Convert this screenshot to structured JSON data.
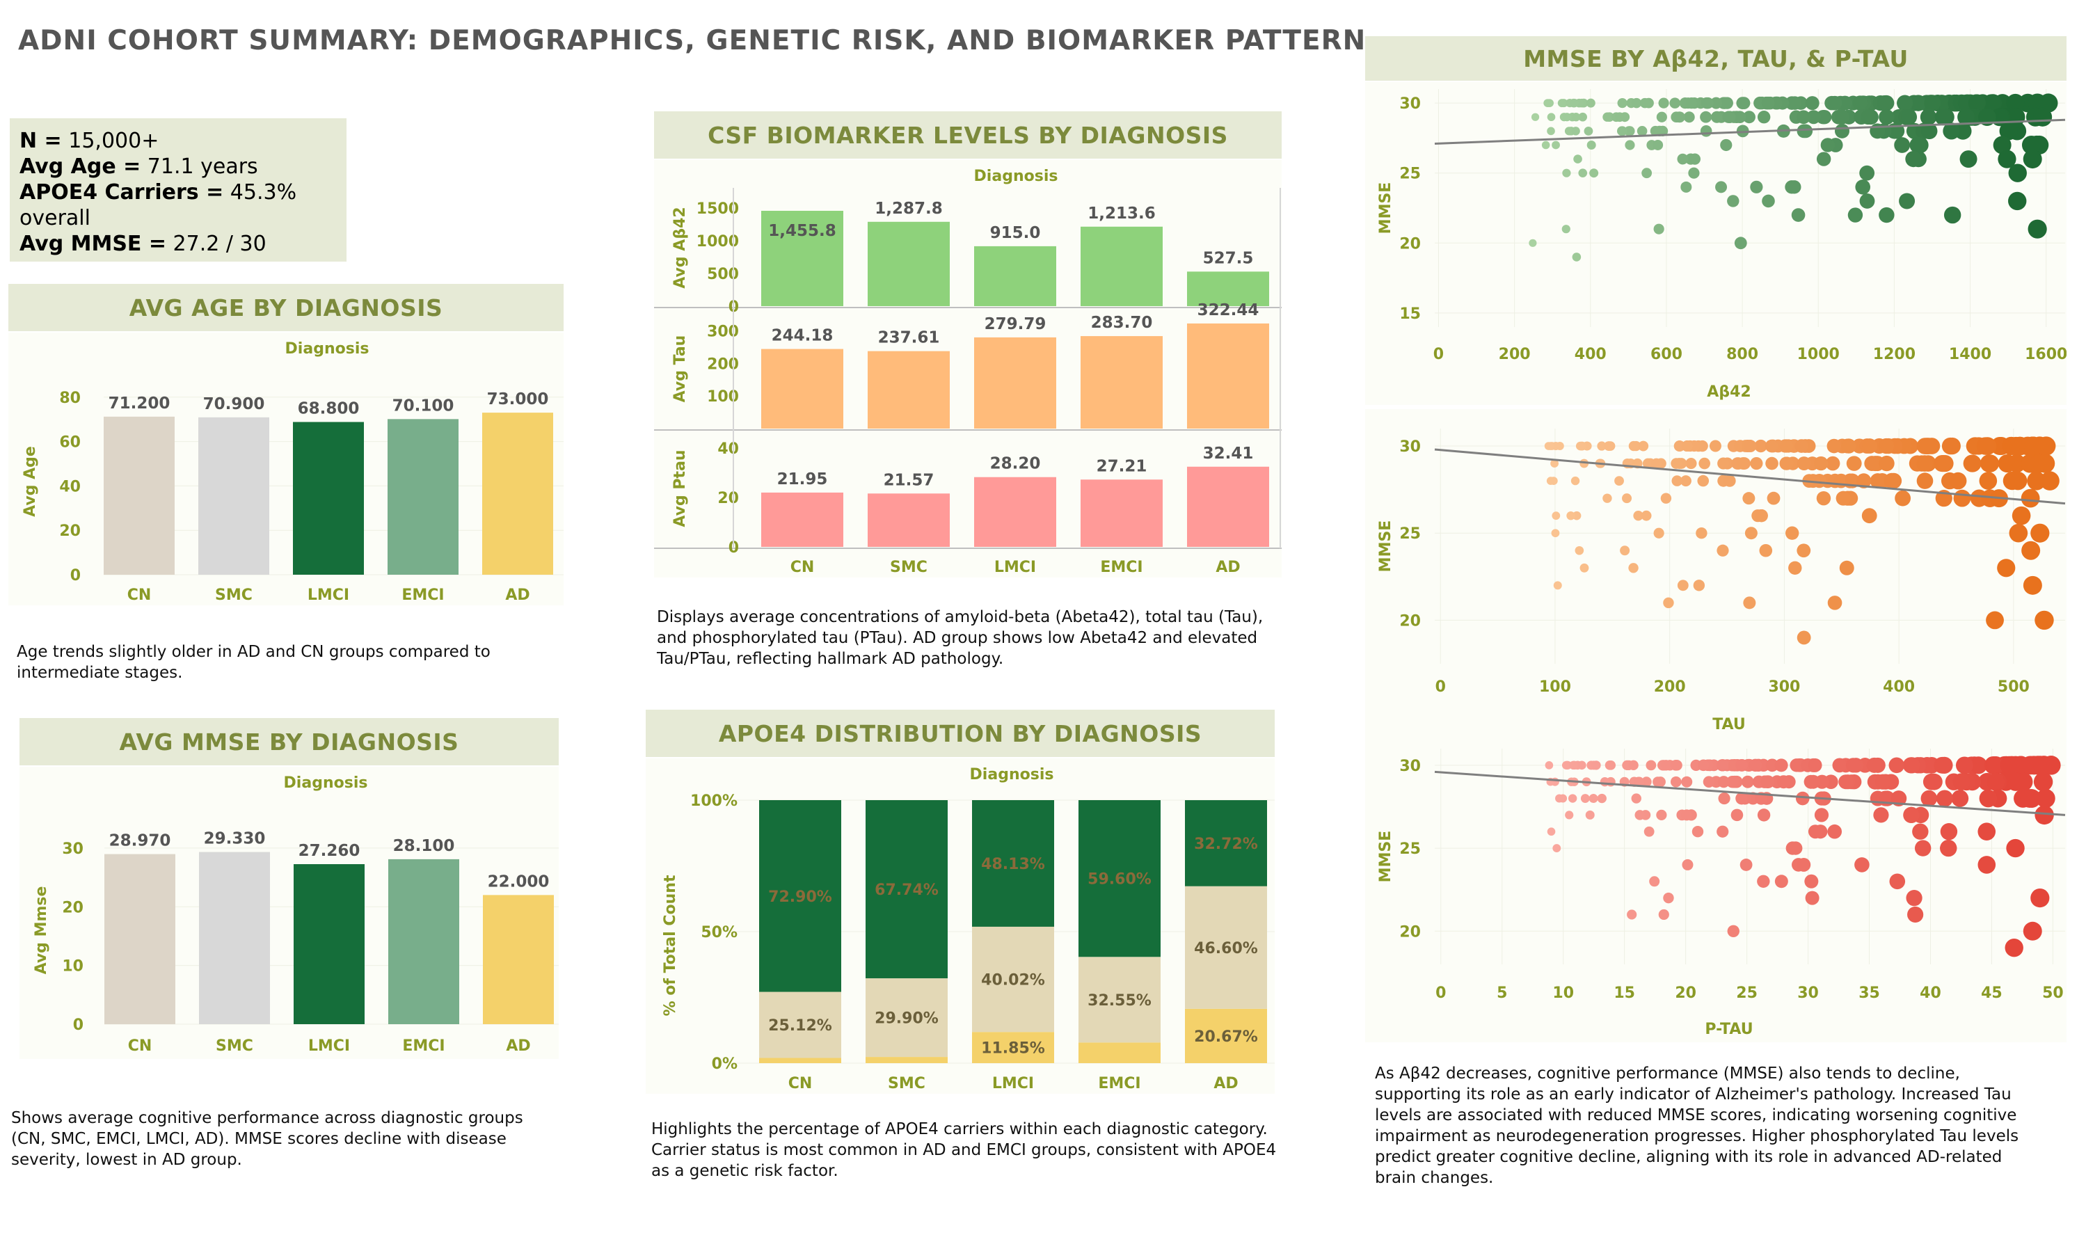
{
  "page_title": "ADNI COHORT SUMMARY: DEMOGRAPHICS, GENETIC RISK, AND BIOMARKER PATTERN..",
  "kpis": [
    {
      "label": "N =",
      "value": " 15,000+"
    },
    {
      "label": "Avg Age =",
      "value": " 71.1 years"
    },
    {
      "label": "APOE4 Carriers =",
      "value": " 45.3% overall"
    },
    {
      "label": "Avg MMSE =",
      "value": " 27.2 / 30"
    }
  ],
  "panels": {
    "age": {
      "title": "AVG AGE BY DIAGNOSIS",
      "description": "Age trends slightly older in AD and CN groups compared to intermediate stages."
    },
    "mmse": {
      "title": "AVG MMSE BY DIAGNOSIS",
      "description": "Shows average cognitive performance across diagnostic groups (CN, SMC, EMCI, LMCI, AD). MMSE scores decline with disease severity, lowest in AD group."
    },
    "csf": {
      "title": "CSF  BIOMARKER LEVELS BY DIAGNOSIS",
      "description": "Displays average concentrations of amyloid-beta (Abeta42), total tau (Tau), and phosphorylated tau (PTau). AD group shows low Abeta42 and elevated Tau/PTau, reflecting hallmark AD pathology."
    },
    "apoe": {
      "title": "APOE4 DISTRIBUTION BY DIAGNOSIS",
      "description": "Highlights the percentage of APOE4 carriers within each diagnostic category. Carrier status is most common in AD and EMCI groups, consistent with APOE4 as a genetic risk factor."
    },
    "scatter": {
      "title": "MMSE BY Aβ42, TAU, & P-TAU",
      "description": "As Aβ42 decreases, cognitive performance (MMSE) also tends to decline, supporting its role as an early indicator of Alzheimer's pathology. Increased Tau levels are associated with reduced MMSE scores, indicating worsening cognitive impairment as neurodegeneration progresses. Higher phosphorylated Tau levels predict greater cognitive decline, aligning with its role in advanced AD-related brain changes."
    }
  },
  "colors": {
    "CN": "#ddd5c8",
    "SMC": "#d8d8d8",
    "LMCI": "#156e3a",
    "EMCI": "#78ae8b",
    "AD": "#f4d16a",
    "abeta": "#8ed27b",
    "tau": "#ffbb7a",
    "ptau": "#ff9a98",
    "apoe_dark": "#156e3a",
    "apoe_mid": "#e3d8b6",
    "apoe_light": "#f4d16a"
  },
  "chart_data": [
    {
      "id": "age",
      "type": "bar",
      "header": "Diagnosis",
      "categories": [
        "CN",
        "SMC",
        "LMCI",
        "EMCI",
        "AD"
      ],
      "values": [
        71.2,
        70.9,
        68.8,
        70.1,
        73.0
      ],
      "value_labels": [
        "71.200",
        "70.900",
        "68.800",
        "70.100",
        "73.000"
      ],
      "ylabel": "Avg Age",
      "yticks": [
        0,
        20,
        40,
        60,
        80
      ],
      "ylim": [
        0,
        84
      ]
    },
    {
      "id": "mmse",
      "type": "bar",
      "header": "Diagnosis",
      "categories": [
        "CN",
        "SMC",
        "LMCI",
        "EMCI",
        "AD"
      ],
      "values": [
        28.97,
        29.33,
        27.26,
        28.1,
        22.0
      ],
      "value_labels": [
        "28.970",
        "29.330",
        "27.260",
        "28.100",
        "22.000"
      ],
      "ylabel": "Avg Mmse",
      "yticks": [
        0,
        10,
        20,
        30
      ],
      "ylim": [
        0,
        32
      ]
    },
    {
      "id": "csf",
      "type": "bar",
      "header": "Diagnosis",
      "categories": [
        "CN",
        "SMC",
        "LMCI",
        "EMCI",
        "AD"
      ],
      "series": [
        {
          "ylabel": "Avg Aβ42",
          "values": [
            1455.8,
            1287.8,
            915.0,
            1213.6,
            527.5
          ],
          "value_labels": [
            "1,455.8",
            "1,287.8",
            "915.0",
            "1,213.6",
            "527.5"
          ],
          "yticks": [
            0,
            500,
            1000,
            1500
          ],
          "ylim": [
            0,
            1700
          ]
        },
        {
          "ylabel": "Avg Tau",
          "values": [
            244.18,
            237.61,
            279.79,
            283.7,
            322.44
          ],
          "value_labels": [
            "244.18",
            "237.61",
            "279.79",
            "283.70",
            "322.44"
          ],
          "yticks": [
            100,
            200,
            300
          ],
          "ylim": [
            0,
            350
          ]
        },
        {
          "ylabel": "Avg Ptau",
          "values": [
            21.95,
            21.57,
            28.2,
            27.21,
            32.41
          ],
          "value_labels": [
            "21.95",
            "21.57",
            "28.20",
            "27.21",
            "32.41"
          ],
          "yticks": [
            0,
            20,
            40
          ],
          "ylim": [
            0,
            45
          ]
        }
      ]
    },
    {
      "id": "apoe",
      "type": "bar",
      "stacked": true,
      "header": "Diagnosis",
      "categories": [
        "CN",
        "SMC",
        "LMCI",
        "EMCI",
        "AD"
      ],
      "ylabel": "% of Total Count",
      "yticks": [
        "0%",
        "50%",
        "100%"
      ],
      "stack_order_bottom_to_top": [
        "light",
        "mid",
        "dark"
      ],
      "light": [
        1.98,
        2.36,
        11.85,
        7.85,
        20.67
      ],
      "mid": [
        25.12,
        29.9,
        40.02,
        32.55,
        46.6
      ],
      "dark": [
        72.9,
        67.74,
        48.13,
        59.6,
        32.72
      ],
      "labels_dark": [
        "72.90%",
        "67.74%",
        "48.13%",
        "59.60%",
        "32.72%"
      ],
      "labels_mid": [
        "25.12%",
        "29.90%",
        "40.02%",
        "32.55%",
        "46.60%"
      ],
      "labels_light": [
        "",
        "",
        "11.85%",
        "",
        "20.67%"
      ]
    },
    {
      "id": "scatter_abeta",
      "type": "scatter",
      "xlabel": "Aβ42",
      "ylabel": "MMSE",
      "xticks": [
        0,
        200,
        400,
        600,
        800,
        1000,
        1200,
        1400,
        1600
      ],
      "yticks": [
        15,
        20,
        25,
        30
      ],
      "xlim": [
        -10,
        1650
      ],
      "ylim": [
        14,
        31
      ],
      "trend": [
        [
          -10,
          27.1
        ],
        [
          1650,
          28.8
        ]
      ],
      "color_low": "#c6e8b8",
      "color_high": "#1f6a34"
    },
    {
      "id": "scatter_tau",
      "type": "scatter",
      "xlabel": "TAU",
      "ylabel": "MMSE",
      "xticks": [
        0,
        100,
        200,
        300,
        400,
        500
      ],
      "yticks": [
        20,
        25,
        30
      ],
      "xlim": [
        -5,
        545
      ],
      "ylim": [
        17.5,
        31
      ],
      "trend": [
        [
          -5,
          29.8
        ],
        [
          545,
          26.7
        ]
      ],
      "color_low": "#ffd9b0",
      "color_high": "#e8721e"
    },
    {
      "id": "scatter_ptau",
      "type": "scatter",
      "xlabel": "P-TAU",
      "ylabel": "MMSE",
      "xticks": [
        0,
        5,
        10,
        15,
        20,
        25,
        30,
        35,
        40,
        45,
        50
      ],
      "yticks": [
        20,
        25,
        30
      ],
      "xlim": [
        -0.5,
        51
      ],
      "ylim": [
        18,
        31
      ],
      "trend": [
        [
          -0.5,
          29.6
        ],
        [
          51,
          27.0
        ]
      ],
      "color_low": "#ffc1b8",
      "color_high": "#e4463a"
    }
  ]
}
